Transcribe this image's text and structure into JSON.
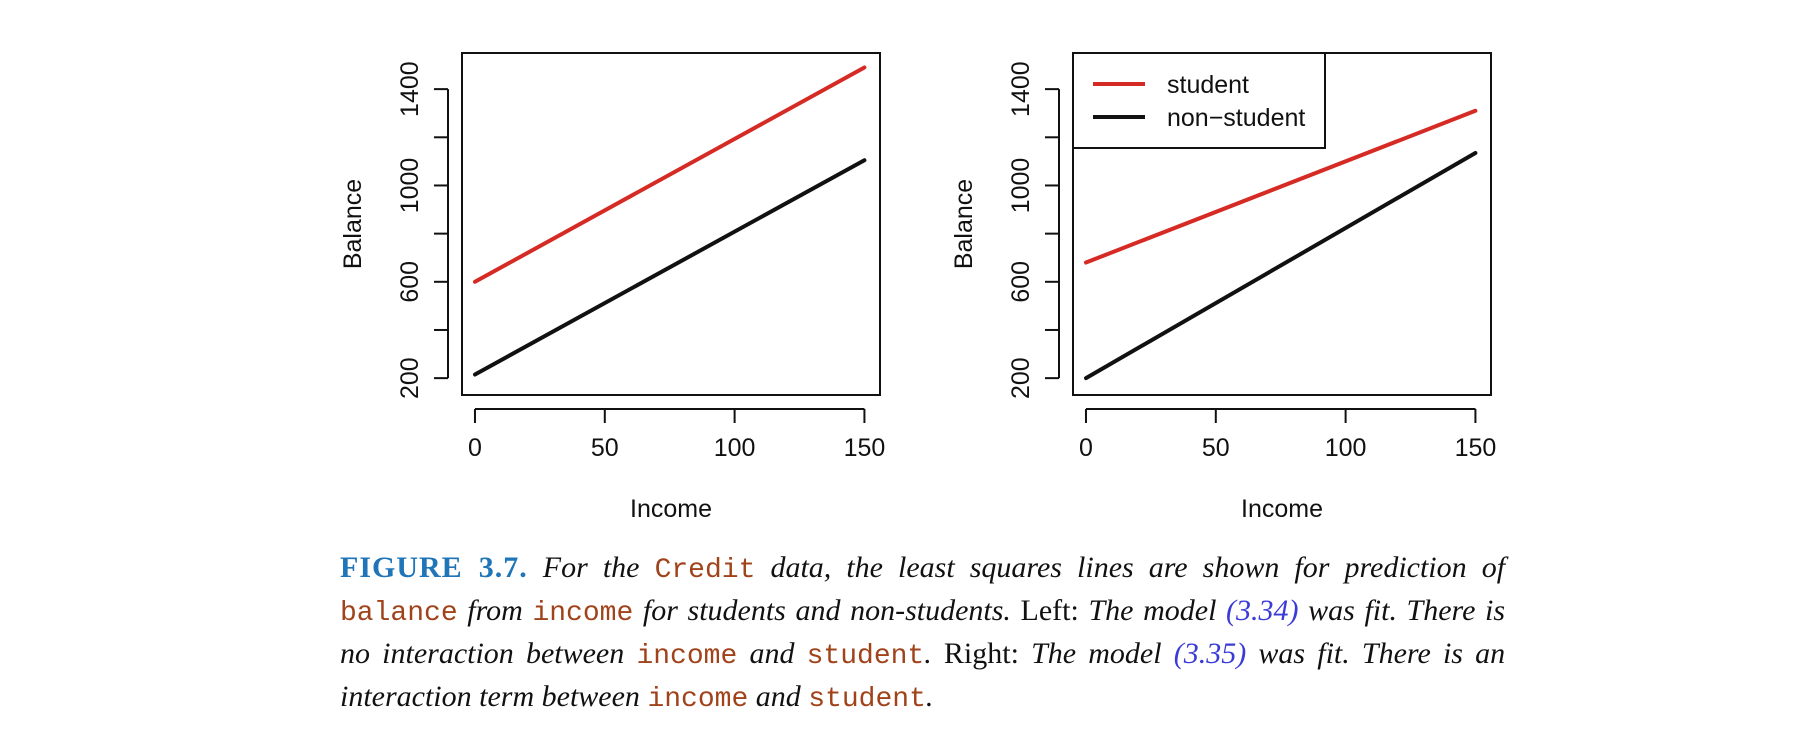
{
  "chart_data": [
    {
      "type": "line",
      "xlabel": "Income",
      "ylabel": "Balance",
      "xlim": [
        -5,
        156
      ],
      "ylim": [
        130,
        1550
      ],
      "xticks": [
        0,
        50,
        100,
        150
      ],
      "yticks": [
        200,
        600,
        1000,
        1400
      ],
      "yticks_minor": [
        400,
        800,
        1200
      ],
      "series": [
        {
          "color": "#d62b24",
          "x": [
            0,
            150
          ],
          "y": [
            600,
            1490
          ]
        },
        {
          "color": "#111111",
          "x": [
            0,
            150
          ],
          "y": [
            215,
            1105
          ]
        }
      ]
    },
    {
      "type": "line",
      "xlabel": "Income",
      "ylabel": "Balance",
      "xlim": [
        -5,
        156
      ],
      "ylim": [
        130,
        1550
      ],
      "xticks": [
        0,
        50,
        100,
        150
      ],
      "yticks": [
        200,
        600,
        1000,
        1400
      ],
      "yticks_minor": [
        400,
        800,
        1200
      ],
      "legend": "top-left",
      "series": [
        {
          "name": "student",
          "color": "#d62b24",
          "x": [
            0,
            150
          ],
          "y": [
            680,
            1310
          ]
        },
        {
          "name": "non−student",
          "color": "#111111",
          "x": [
            0,
            150
          ],
          "y": [
            200,
            1135
          ]
        }
      ]
    }
  ],
  "caption": {
    "label": "FIGURE 3.7.",
    "t1": "For the",
    "c1": "Credit",
    "t2": "data, the least squares lines are shown for prediction of",
    "c2": "balance",
    "t3": "from",
    "c3": "income",
    "t4": "for students and non-students.",
    "r1": "Left:",
    "t5": "The model",
    "ref1": "(3.34)",
    "t6": "was fit. There is no interaction between",
    "c4": "income",
    "t7": "and",
    "c5": "student",
    "t8": ".",
    "r2": "Right:",
    "t9": "The model",
    "ref2": "(3.35)",
    "t10": "was fit. There is an interaction term between",
    "c6": "income",
    "t11": "and",
    "c7": "student",
    "t12": "."
  }
}
